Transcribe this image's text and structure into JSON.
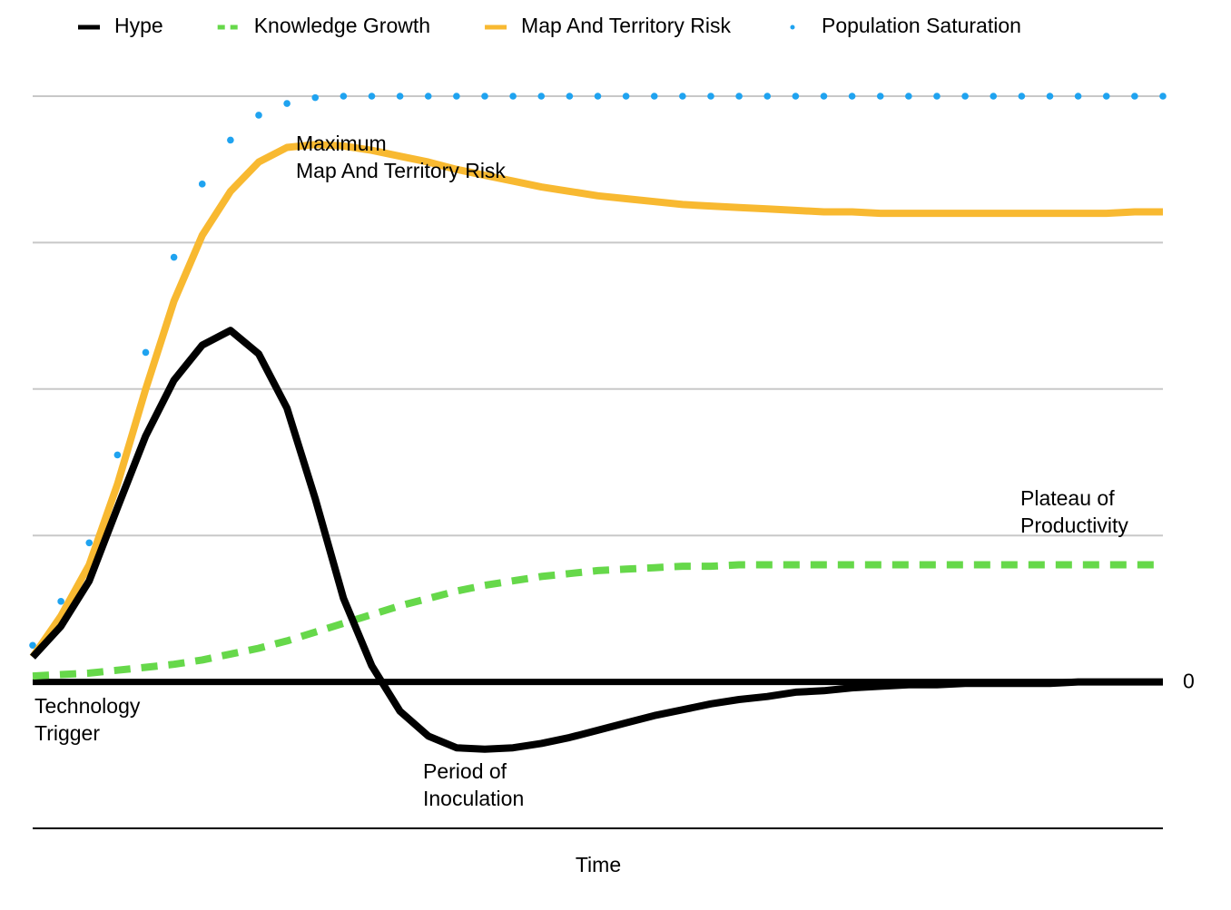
{
  "chart_data": {
    "type": "line",
    "x_label": "Time",
    "x": [
      0,
      1,
      2,
      3,
      4,
      5,
      6,
      7,
      8,
      9,
      10,
      11,
      12,
      13,
      14,
      15,
      16,
      17,
      18,
      19,
      20,
      21,
      22,
      23,
      24,
      25,
      26,
      27,
      28,
      29,
      30,
      31,
      32,
      33,
      34,
      35,
      36,
      37,
      38,
      39,
      40
    ],
    "xlim": [
      0,
      40
    ],
    "ylim": [
      -1,
      4
    ],
    "yticks": [
      0,
      {
        "value": 1,
        "label": null
      },
      {
        "value": 2,
        "label": null
      },
      {
        "value": 3,
        "label": null
      },
      {
        "value": 4,
        "label": null
      }
    ],
    "grid": true,
    "legend": "top",
    "series": [
      {
        "name": "Hype",
        "color": "#000000",
        "style": "solid",
        "values": [
          0.17,
          0.38,
          0.69,
          1.19,
          1.68,
          2.06,
          2.3,
          2.4,
          2.24,
          1.87,
          1.25,
          0.57,
          0.11,
          -0.2,
          -0.37,
          -0.45,
          -0.46,
          -0.45,
          -0.42,
          -0.38,
          -0.33,
          -0.28,
          -0.23,
          -0.19,
          -0.15,
          -0.12,
          -0.1,
          -0.07,
          -0.06,
          -0.04,
          -0.03,
          -0.02,
          -0.02,
          -0.01,
          -0.01,
          -0.01,
          -0.01,
          0,
          0,
          0,
          0
        ]
      },
      {
        "name": "Knowledge Growth",
        "color": "#66d84a",
        "style": "dashed",
        "values": [
          0.04,
          0.05,
          0.06,
          0.08,
          0.1,
          0.12,
          0.15,
          0.19,
          0.23,
          0.28,
          0.34,
          0.4,
          0.46,
          0.52,
          0.57,
          0.62,
          0.66,
          0.69,
          0.72,
          0.74,
          0.76,
          0.77,
          0.78,
          0.79,
          0.79,
          0.8,
          0.8,
          0.8,
          0.8,
          0.8,
          0.8,
          0.8,
          0.8,
          0.8,
          0.8,
          0.8,
          0.8,
          0.8,
          0.8,
          0.8,
          0.8
        ]
      },
      {
        "name": "Map And Territory Risk",
        "color": "#f8b931",
        "style": "solid",
        "values": [
          0.17,
          0.45,
          0.8,
          1.35,
          2.0,
          2.6,
          3.05,
          3.35,
          3.55,
          3.65,
          3.67,
          3.66,
          3.63,
          3.59,
          3.55,
          3.5,
          3.46,
          3.42,
          3.38,
          3.35,
          3.32,
          3.3,
          3.28,
          3.26,
          3.25,
          3.24,
          3.23,
          3.22,
          3.21,
          3.21,
          3.2,
          3.2,
          3.2,
          3.2,
          3.2,
          3.2,
          3.2,
          3.2,
          3.2,
          3.21,
          3.21
        ]
      },
      {
        "name": "Population Saturation",
        "color": "#1fa3f0",
        "style": "dotted",
        "values": [
          0.25,
          0.55,
          0.95,
          1.55,
          2.25,
          2.9,
          3.4,
          3.7,
          3.87,
          3.95,
          3.99,
          4,
          4,
          4,
          4,
          4,
          4,
          4,
          4,
          4,
          4,
          4,
          4,
          4,
          4,
          4,
          4,
          4,
          4,
          4,
          4,
          4,
          4,
          4,
          4,
          4,
          4,
          4,
          4,
          4,
          4
        ]
      }
    ],
    "annotations": [
      {
        "lines": [
          "Technology",
          "Trigger"
        ]
      },
      {
        "lines": [
          "Maximum",
          "Map And Territory Risk"
        ]
      },
      {
        "lines": [
          "Period of",
          "Inoculation"
        ]
      },
      {
        "lines": [
          "Plateau of",
          "Productivity"
        ]
      }
    ]
  }
}
